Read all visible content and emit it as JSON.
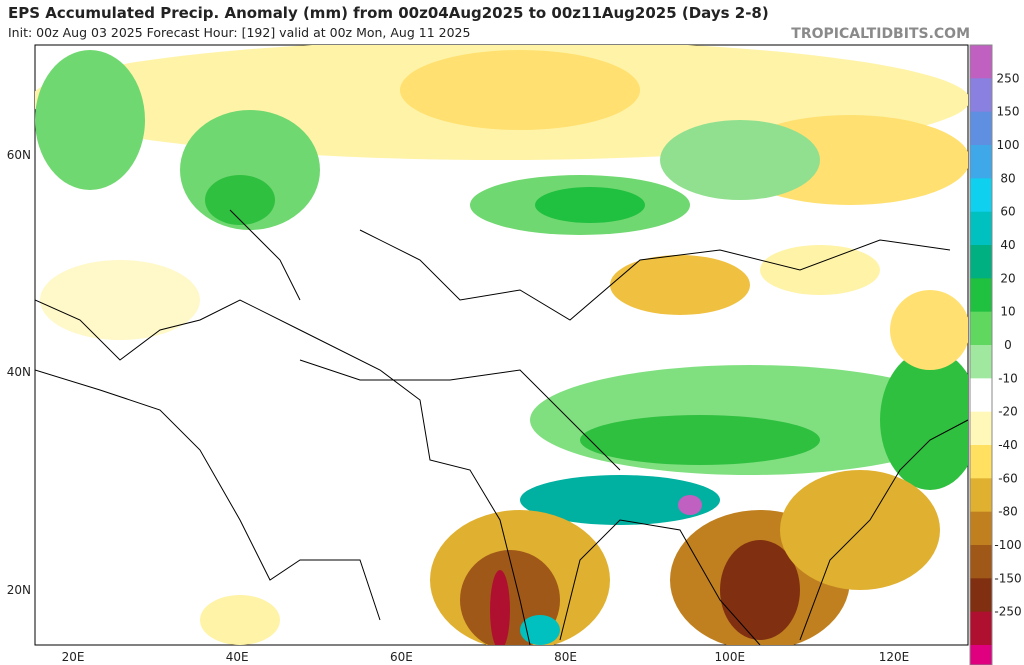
{
  "header": {
    "title": "EPS Accumulated Precip. Anomaly (mm) from 00z04Aug2025 to 00z11Aug2025 (Days 2-8)",
    "subtitle": "Init: 00z Aug 03 2025   Forecast Hour: [192]   valid at 00z Mon, Aug 11 2025",
    "watermark": "TROPICALTIDBITS.COM"
  },
  "map": {
    "lat_labels": [
      "60N",
      "40N",
      "20N"
    ],
    "lon_labels": [
      "20E",
      "40E",
      "60E",
      "80E",
      "100E",
      "120E"
    ]
  },
  "colorbar": {
    "labels": [
      "250",
      "150",
      "100",
      "80",
      "60",
      "40",
      "20",
      "10",
      "0",
      "-10",
      "-20",
      "-40",
      "-60",
      "-80",
      "-100",
      "-150",
      "-250"
    ],
    "colors": [
      "#c060c0",
      "#8a80e0",
      "#5f8fe0",
      "#3fa8e8",
      "#10d0f0",
      "#00c0c0",
      "#00b080",
      "#20c040",
      "#60d860",
      "#a0e8a0",
      "#ffffff",
      "#fff8b8",
      "#ffe060",
      "#e0b030",
      "#c08020",
      "#a05818",
      "#803010",
      "#b01030"
    ],
    "bottom_color": "#e0007f"
  }
}
